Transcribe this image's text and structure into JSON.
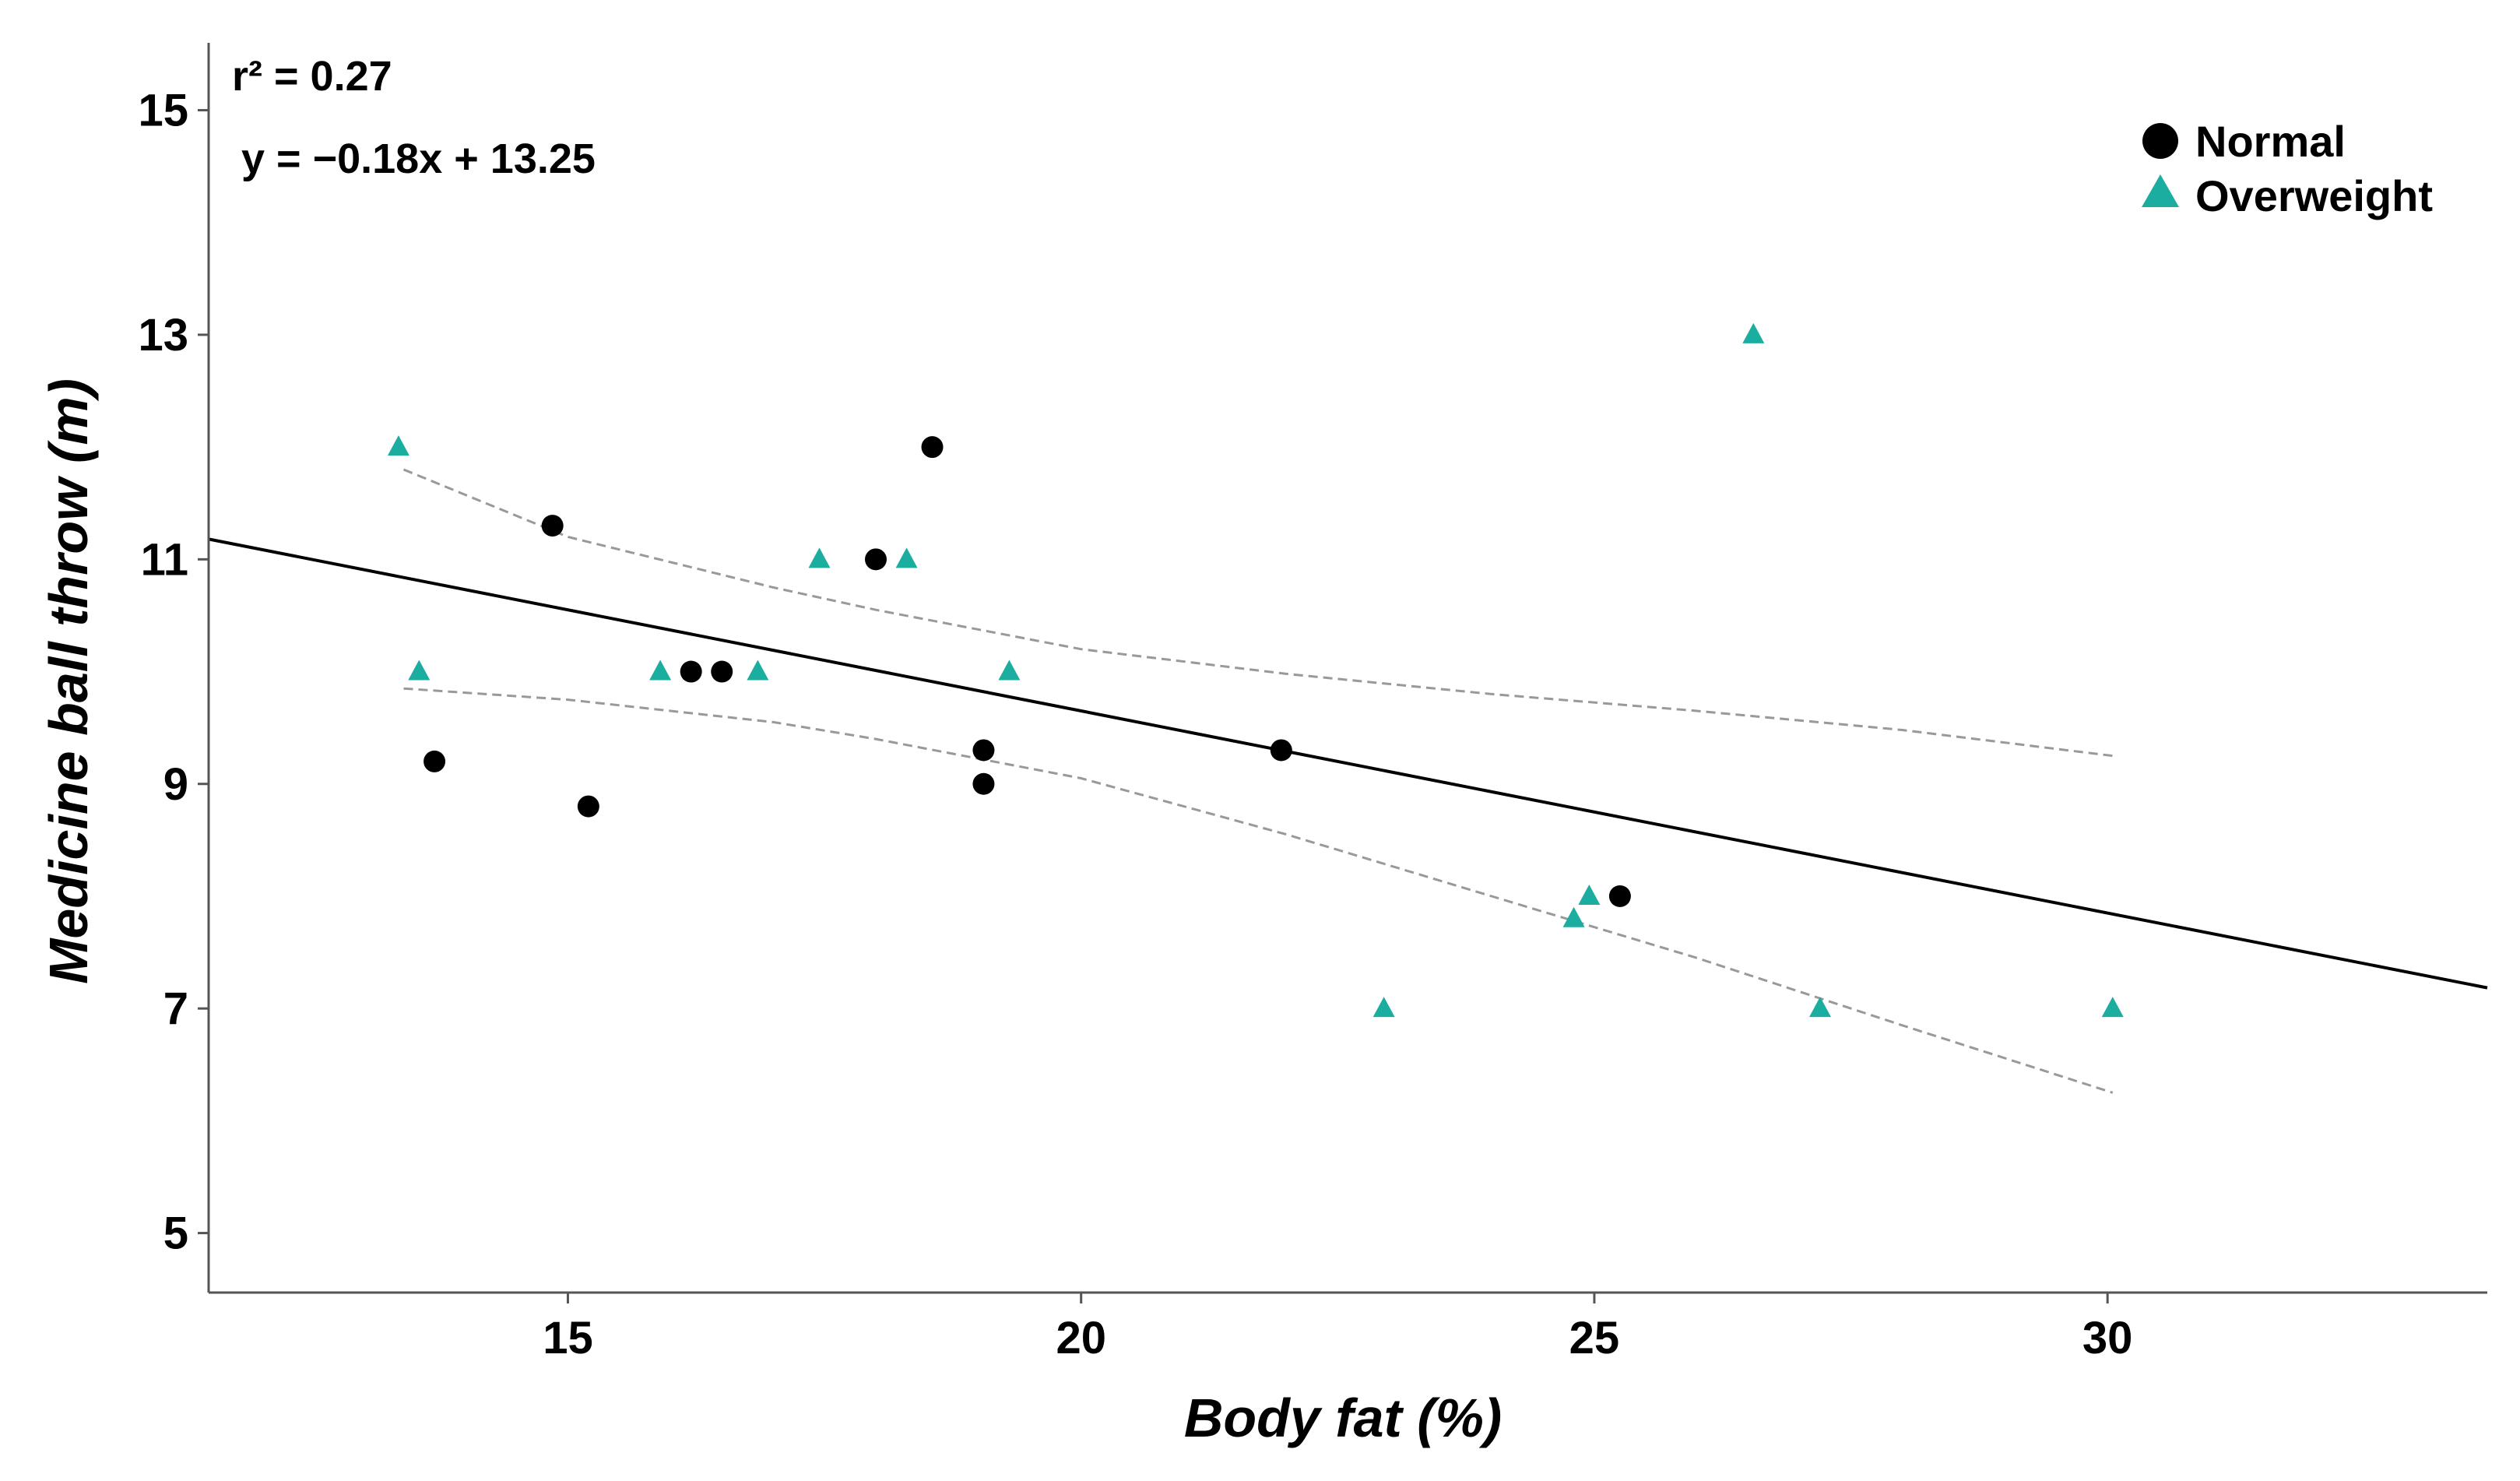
{
  "chart_data": {
    "type": "scatter",
    "xlabel": "Body fat (%)",
    "ylabel": "Medicine ball throw (m)",
    "xlim": [
      11.5,
      33.7
    ],
    "ylim": [
      4.47,
      15.6
    ],
    "xticks": [
      15,
      20,
      25,
      30
    ],
    "yticks": [
      5,
      7,
      9,
      11,
      13,
      15
    ],
    "grid": false,
    "legend_position": "top-right",
    "annotations": {
      "r2": "r² = 0.27",
      "equation": "y = −0.18x + 13.25"
    },
    "series": [
      {
        "name": "Normal",
        "marker": "circle",
        "color": "#000000",
        "points": [
          {
            "x": 13.7,
            "y": 9.2
          },
          {
            "x": 14.85,
            "y": 11.3
          },
          {
            "x": 15.2,
            "y": 8.8
          },
          {
            "x": 16.2,
            "y": 10.0
          },
          {
            "x": 16.5,
            "y": 10.0
          },
          {
            "x": 18.0,
            "y": 11.0
          },
          {
            "x": 18.55,
            "y": 12.0
          },
          {
            "x": 19.05,
            "y": 9.3
          },
          {
            "x": 19.05,
            "y": 9.0
          },
          {
            "x": 21.95,
            "y": 9.3
          },
          {
            "x": 25.25,
            "y": 8.0
          }
        ]
      },
      {
        "name": "Overweight",
        "marker": "triangle",
        "color": "#1aada0",
        "points": [
          {
            "x": 13.35,
            "y": 12.0
          },
          {
            "x": 13.55,
            "y": 10.0
          },
          {
            "x": 15.9,
            "y": 10.0
          },
          {
            "x": 16.85,
            "y": 10.0
          },
          {
            "x": 17.45,
            "y": 11.0
          },
          {
            "x": 18.3,
            "y": 11.0
          },
          {
            "x": 19.3,
            "y": 10.0
          },
          {
            "x": 22.95,
            "y": 7.0
          },
          {
            "x": 24.8,
            "y": 7.8
          },
          {
            "x": 24.95,
            "y": 8.0
          },
          {
            "x": 26.55,
            "y": 13.0
          },
          {
            "x": 27.2,
            "y": 7.0
          },
          {
            "x": 30.05,
            "y": 7.0
          }
        ]
      }
    ],
    "fit_line": {
      "slope": -0.18,
      "intercept": 13.25,
      "x_range": [
        11.5,
        33.7
      ],
      "color": "#000000"
    },
    "confidence_band": {
      "color": "#999999",
      "upper": [
        [
          13.4,
          11.8
        ],
        [
          15,
          11.2
        ],
        [
          17,
          10.75
        ],
        [
          18,
          10.55
        ],
        [
          20,
          10.2
        ],
        [
          22,
          9.98
        ],
        [
          24,
          9.8
        ],
        [
          26,
          9.65
        ],
        [
          28,
          9.48
        ],
        [
          30.05,
          9.25
        ]
      ],
      "lower": [
        [
          13.4,
          9.85
        ],
        [
          15,
          9.75
        ],
        [
          17,
          9.55
        ],
        [
          18,
          9.4
        ],
        [
          20,
          9.05
        ],
        [
          22,
          8.55
        ],
        [
          24,
          8.0
        ],
        [
          26,
          7.45
        ],
        [
          28,
          6.85
        ],
        [
          30.05,
          6.25
        ]
      ]
    }
  }
}
